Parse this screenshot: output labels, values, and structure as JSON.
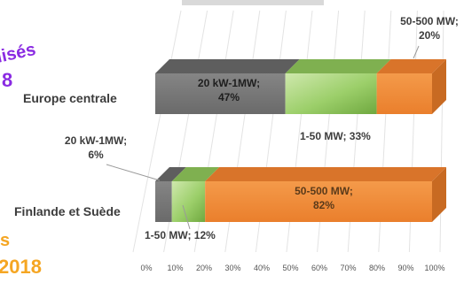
{
  "chart_data": {
    "type": "bar",
    "orientation": "horizontal",
    "stacked": true,
    "three_d": true,
    "xlim": [
      0,
      100
    ],
    "x_ticks": [
      "0%",
      "10%",
      "20%",
      "30%",
      "40%",
      "50%",
      "60%",
      "70%",
      "80%",
      "90%",
      "100%"
    ],
    "grid": true,
    "legend": "none",
    "categories": [
      "Europe centrale",
      "Finlande et Suède"
    ],
    "series": [
      {
        "name": "20 kW-1MW",
        "color": "#7a7a7a",
        "values": [
          47,
          6
        ]
      },
      {
        "name": "1-50 MW",
        "color": "#8fc15a",
        "values": [
          33,
          12
        ]
      },
      {
        "name": "50-500 MW",
        "color": "#f08c3a",
        "values": [
          20,
          82
        ]
      }
    ],
    "data_labels": [
      {
        "text": "20 kW-1MW;",
        "value": "47%",
        "category": 0,
        "series": 0
      },
      {
        "text": "1-50 MW; 33%",
        "value": "",
        "category": 0,
        "series": 1
      },
      {
        "text": "50-500 MW;",
        "value": "20%",
        "category": 0,
        "series": 2
      },
      {
        "text": "20 kW-1MW;",
        "value": "6%",
        "category": 1,
        "series": 0
      },
      {
        "text": "1-50 MW; 12%",
        "value": "",
        "category": 1,
        "series": 1
      },
      {
        "text": "50-500 MW;",
        "value": "82%",
        "category": 1,
        "series": 2
      }
    ]
  },
  "fragments": {
    "left_top_1": "lisés",
    "left_top_2": "8",
    "left_bottom_1": "s",
    "left_bottom_2": "2018"
  },
  "colors": {
    "purple": "#8a2be2",
    "orange": "#f5a623",
    "label_text": "#3c3c3c"
  }
}
